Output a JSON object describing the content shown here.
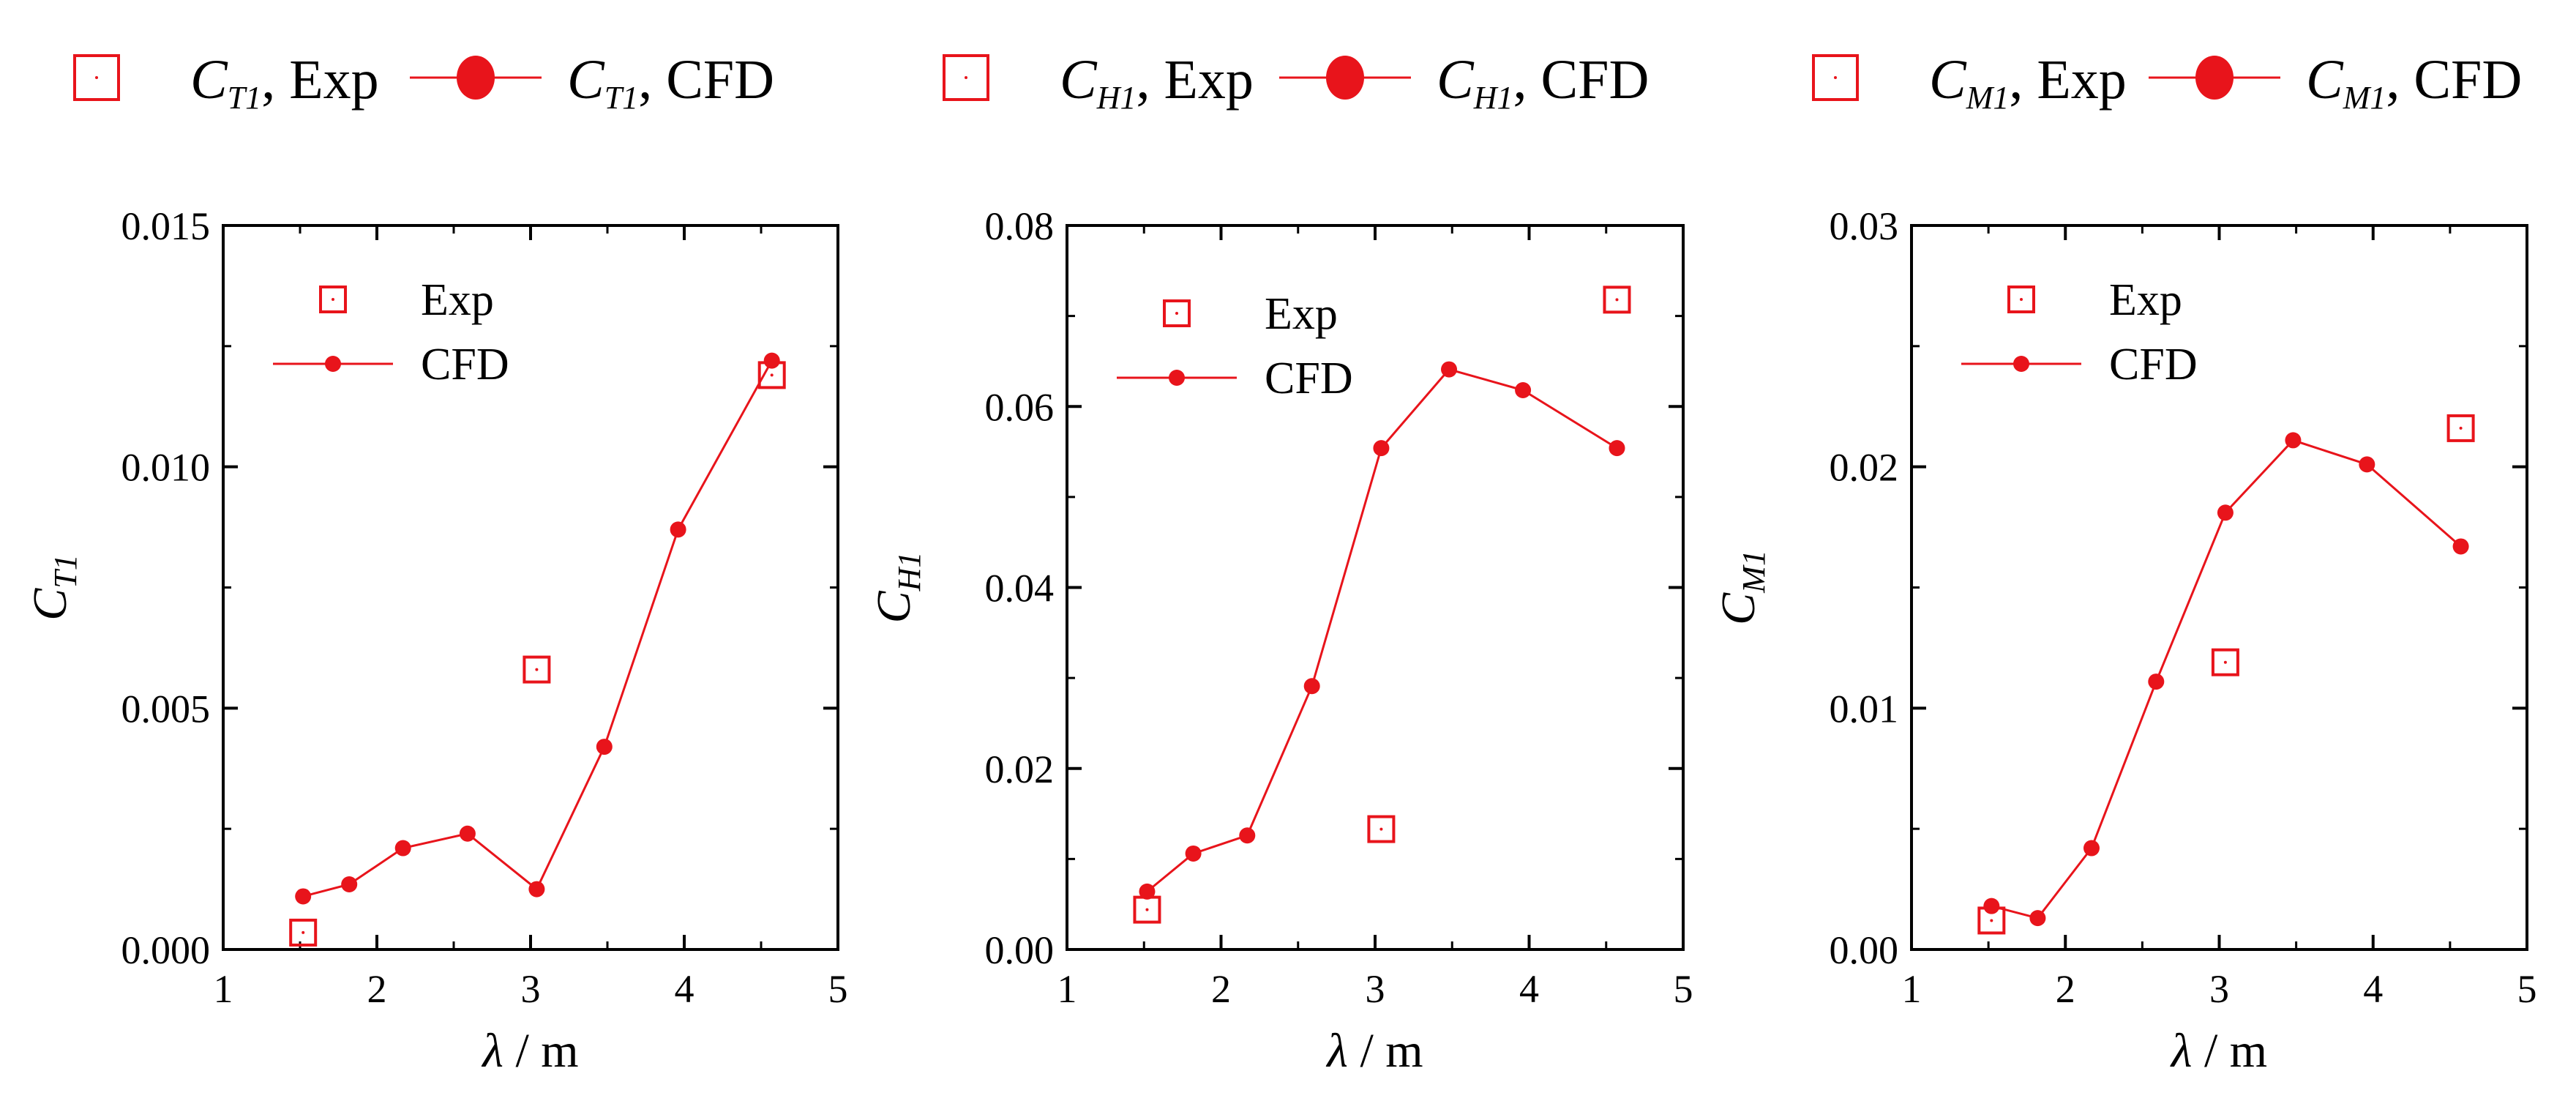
{
  "colors": {
    "series": "#e8141b",
    "axis": "#000000",
    "background": "#ffffff"
  },
  "top_legends": [
    {
      "exp_sub": "T1",
      "exp_text": ", Exp",
      "cfd_sub": "T1",
      "cfd_text": ", CFD",
      "symbol": "C"
    },
    {
      "exp_sub": "H1",
      "exp_text": ", Exp",
      "cfd_sub": "H1",
      "cfd_text": ", CFD",
      "symbol": "C"
    },
    {
      "exp_sub": "M1",
      "exp_text": ", Exp",
      "cfd_sub": "M1",
      "cfd_text": ", CFD",
      "symbol": "C"
    }
  ],
  "chart_data": [
    {
      "type": "line",
      "ylabel_symbol": "C",
      "ylabel_sub": "T1",
      "xlabel_symbol": "λ",
      "xlabel_rest": " / m",
      "xlim": [
        1,
        5
      ],
      "ylim": [
        0,
        0.015
      ],
      "xticks": [
        1,
        2,
        3,
        4,
        5
      ],
      "xtick_labels": [
        "1",
        "2",
        "3",
        "4",
        "5"
      ],
      "yticks": [
        0,
        0.005,
        0.01,
        0.015
      ],
      "ytick_labels": [
        "0.000",
        "0.005",
        "0.010",
        "0.015"
      ],
      "legend": {
        "position": "top-left",
        "exp_label": "Exp",
        "cfd_label": "CFD"
      },
      "series": [
        {
          "name": "Exp",
          "style": "open-square",
          "x": [
            1.52,
            3.04,
            4.57
          ],
          "y": [
            0.00035,
            0.0058,
            0.0119
          ]
        },
        {
          "name": "CFD",
          "style": "line-dot",
          "x": [
            1.52,
            1.82,
            2.17,
            2.59,
            3.04,
            3.48,
            3.96,
            4.57
          ],
          "y": [
            0.0011,
            0.00135,
            0.0021,
            0.0024,
            0.00125,
            0.0042,
            0.0087,
            0.0122
          ]
        }
      ]
    },
    {
      "type": "line",
      "ylabel_symbol": "C",
      "ylabel_sub": "H1",
      "xlabel_symbol": "λ",
      "xlabel_rest": " / m",
      "xlim": [
        1,
        5
      ],
      "ylim": [
        0,
        0.08
      ],
      "xticks": [
        1,
        2,
        3,
        4,
        5
      ],
      "xtick_labels": [
        "1",
        "2",
        "3",
        "4",
        "5"
      ],
      "yticks": [
        0,
        0.02,
        0.04,
        0.06,
        0.08
      ],
      "ytick_labels": [
        "0.00",
        "0.02",
        "0.04",
        "0.06",
        "0.08"
      ],
      "legend": {
        "position": "top-left",
        "exp_label": "Exp",
        "cfd_label": "CFD"
      },
      "series": [
        {
          "name": "Exp",
          "style": "open-square",
          "x": [
            1.52,
            3.04,
            4.57
          ],
          "y": [
            0.0044,
            0.0133,
            0.0718
          ]
        },
        {
          "name": "CFD",
          "style": "line-dot",
          "x": [
            1.52,
            1.82,
            2.17,
            2.59,
            3.04,
            3.48,
            3.96,
            4.57
          ],
          "y": [
            0.0064,
            0.0106,
            0.0126,
            0.0291,
            0.0554,
            0.0641,
            0.0618,
            0.0554
          ]
        }
      ]
    },
    {
      "type": "line",
      "ylabel_symbol": "C",
      "ylabel_sub": "M1",
      "xlabel_symbol": "λ",
      "xlabel_rest": " / m",
      "xlim": [
        1,
        5
      ],
      "ylim": [
        0,
        0.03
      ],
      "xticks": [
        1,
        2,
        3,
        4,
        5
      ],
      "xtick_labels": [
        "1",
        "2",
        "3",
        "4",
        "5"
      ],
      "yticks": [
        0,
        0.01,
        0.02,
        0.03
      ],
      "ytick_labels": [
        "0.00",
        "0.01",
        "0.02",
        "0.03"
      ],
      "legend": {
        "position": "top-left",
        "exp_label": "Exp",
        "cfd_label": "CFD"
      },
      "series": [
        {
          "name": "Exp",
          "style": "open-square",
          "x": [
            1.52,
            3.04,
            4.57
          ],
          "y": [
            0.0012,
            0.0119,
            0.0216
          ]
        },
        {
          "name": "CFD",
          "style": "line-dot",
          "x": [
            1.52,
            1.82,
            2.17,
            2.59,
            3.04,
            3.48,
            3.96,
            4.57
          ],
          "y": [
            0.0018,
            0.0013,
            0.0042,
            0.0111,
            0.0181,
            0.0211,
            0.0201,
            0.0167
          ]
        }
      ]
    }
  ]
}
